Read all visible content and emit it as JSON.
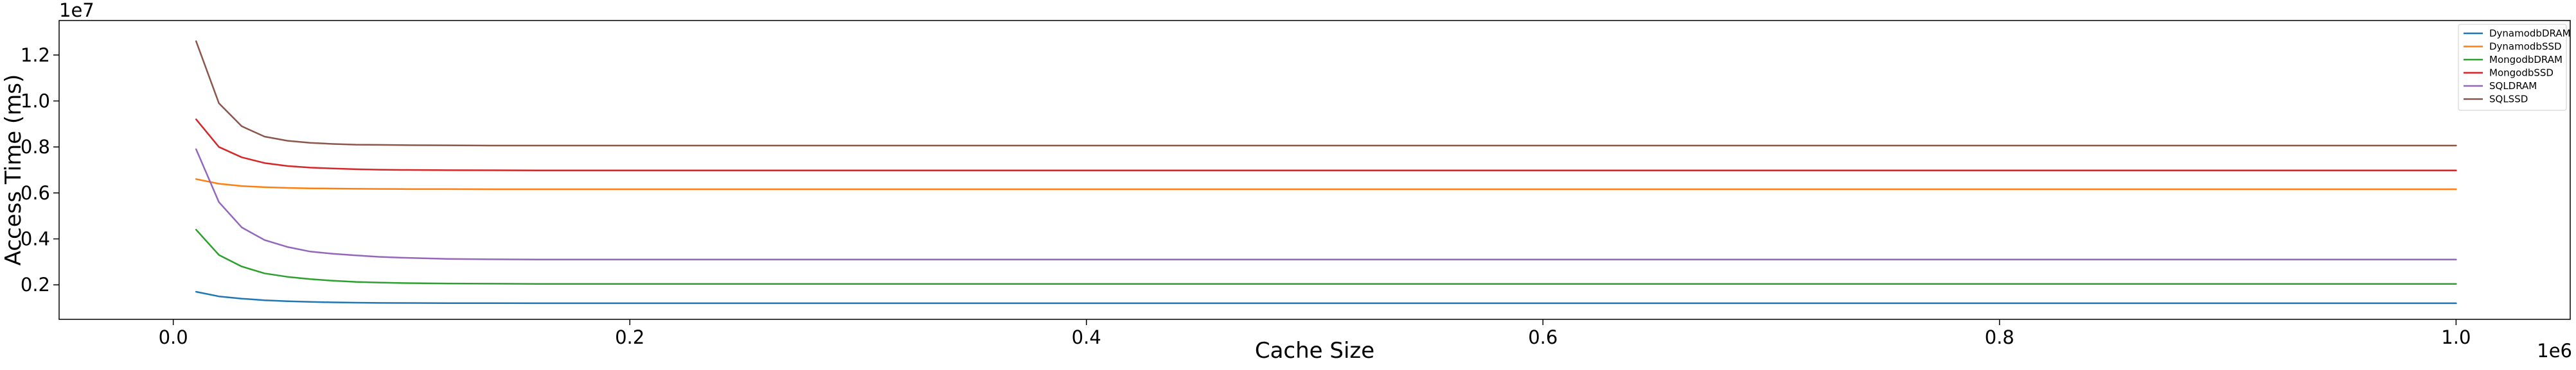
{
  "chart_data": {
    "type": "line",
    "title": "",
    "xlabel": "Cache Size",
    "ylabel": "Access Time (ms)",
    "x_offset_label": "1e6",
    "y_offset_label": "1e7",
    "xlim": [
      -50000,
      1050000
    ],
    "ylim": [
      500000,
      13500000
    ],
    "x_ticks": [
      0,
      200000,
      400000,
      600000,
      800000,
      1000000
    ],
    "x_tick_labels": [
      "0.0",
      "0.2",
      "0.4",
      "0.6",
      "0.8",
      "1.0"
    ],
    "y_ticks": [
      2000000,
      4000000,
      6000000,
      8000000,
      10000000,
      12000000
    ],
    "y_tick_labels": [
      "0.2",
      "0.4",
      "0.6",
      "0.8",
      "1.0",
      "1.2"
    ],
    "grid": false,
    "legend_position": "top-right",
    "x": [
      10000,
      20000,
      30000,
      40000,
      50000,
      60000,
      70000,
      80000,
      90000,
      100000,
      120000,
      140000,
      160000,
      180000,
      200000,
      250000,
      300000,
      400000,
      500000,
      600000,
      700000,
      800000,
      900000,
      1000000
    ],
    "series": [
      {
        "name": "DynamodbDRAM",
        "color": "#1f77b4",
        "values": [
          1700000,
          1500000,
          1400000,
          1330000,
          1290000,
          1260000,
          1240000,
          1225000,
          1215000,
          1210000,
          1205000,
          1202000,
          1200000,
          1200000,
          1200000,
          1200000,
          1200000,
          1200000,
          1200000,
          1200000,
          1200000,
          1200000,
          1200000,
          1200000
        ]
      },
      {
        "name": "DynamodbSSD",
        "color": "#ff7f0e",
        "values": [
          6600000,
          6400000,
          6300000,
          6250000,
          6220000,
          6200000,
          6190000,
          6180000,
          6175000,
          6170000,
          6165000,
          6160000,
          6160000,
          6160000,
          6160000,
          6160000,
          6160000,
          6160000,
          6160000,
          6160000,
          6160000,
          6160000,
          6160000,
          6160000
        ]
      },
      {
        "name": "MongodbDRAM",
        "color": "#2ca02c",
        "values": [
          4400000,
          3300000,
          2800000,
          2500000,
          2350000,
          2250000,
          2180000,
          2130000,
          2100000,
          2080000,
          2060000,
          2050000,
          2040000,
          2040000,
          2040000,
          2040000,
          2040000,
          2040000,
          2040000,
          2040000,
          2040000,
          2040000,
          2040000,
          2040000
        ]
      },
      {
        "name": "MongodbSSD",
        "color": "#d62728",
        "values": [
          9200000,
          8000000,
          7550000,
          7300000,
          7170000,
          7100000,
          7060000,
          7030000,
          7010000,
          7000000,
          6990000,
          6985000,
          6980000,
          6980000,
          6980000,
          6980000,
          6980000,
          6980000,
          6980000,
          6980000,
          6980000,
          6980000,
          6980000,
          6980000
        ]
      },
      {
        "name": "SQLDRAM",
        "color": "#9467bd",
        "values": [
          7900000,
          5600000,
          4500000,
          3950000,
          3650000,
          3450000,
          3350000,
          3280000,
          3220000,
          3180000,
          3130000,
          3110000,
          3100000,
          3100000,
          3100000,
          3100000,
          3100000,
          3100000,
          3100000,
          3100000,
          3100000,
          3100000,
          3100000,
          3100000
        ]
      },
      {
        "name": "SQLSSD",
        "color": "#8c564b",
        "values": [
          12600000,
          9900000,
          8900000,
          8450000,
          8270000,
          8180000,
          8130000,
          8100000,
          8090000,
          8080000,
          8070000,
          8060000,
          8060000,
          8060000,
          8060000,
          8060000,
          8060000,
          8060000,
          8060000,
          8060000,
          8060000,
          8060000,
          8060000,
          8060000
        ]
      }
    ]
  }
}
